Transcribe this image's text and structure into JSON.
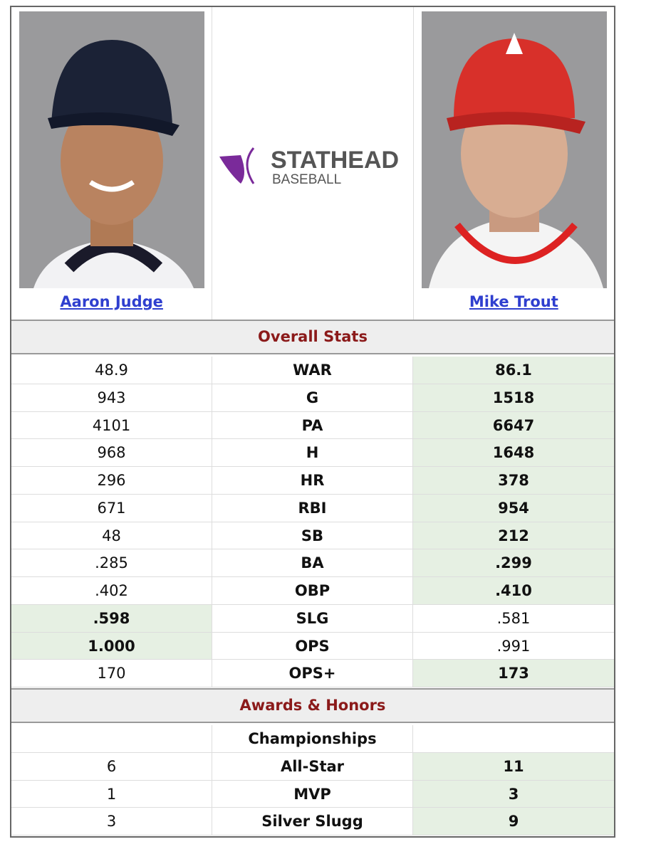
{
  "players": [
    {
      "name": "Aaron Judge"
    },
    {
      "name": "Mike Trout"
    }
  ],
  "logo": {
    "line1": "STATHEAD",
    "line2": "BASEBALL"
  },
  "sections": [
    {
      "title": "Overall Stats",
      "rows": [
        {
          "stat": "WAR",
          "left": "48.9",
          "right": "86.1",
          "leader": "right"
        },
        {
          "stat": "G",
          "left": "943",
          "right": "1518",
          "leader": "right"
        },
        {
          "stat": "PA",
          "left": "4101",
          "right": "6647",
          "leader": "right"
        },
        {
          "stat": "H",
          "left": "968",
          "right": "1648",
          "leader": "right"
        },
        {
          "stat": "HR",
          "left": "296",
          "right": "378",
          "leader": "right"
        },
        {
          "stat": "RBI",
          "left": "671",
          "right": "954",
          "leader": "right"
        },
        {
          "stat": "SB",
          "left": "48",
          "right": "212",
          "leader": "right"
        },
        {
          "stat": "BA",
          "left": ".285",
          "right": ".299",
          "leader": "right"
        },
        {
          "stat": "OBP",
          "left": ".402",
          "right": ".410",
          "leader": "right"
        },
        {
          "stat": "SLG",
          "left": ".598",
          "right": ".581",
          "leader": "left"
        },
        {
          "stat": "OPS",
          "left": "1.000",
          "right": ".991",
          "leader": "left"
        },
        {
          "stat": "OPS+",
          "left": "170",
          "right": "173",
          "leader": "right"
        }
      ]
    },
    {
      "title": "Awards & Honors",
      "rows": [
        {
          "stat": "Championships"
        },
        {
          "stat": "All-Star",
          "left": "6",
          "right": "11",
          "leader": "right"
        },
        {
          "stat": "MVP",
          "left": "1",
          "right": "3",
          "leader": "right"
        },
        {
          "stat": "Silver Slugg",
          "left": "3",
          "right": "9",
          "leader": "right"
        }
      ]
    }
  ]
}
